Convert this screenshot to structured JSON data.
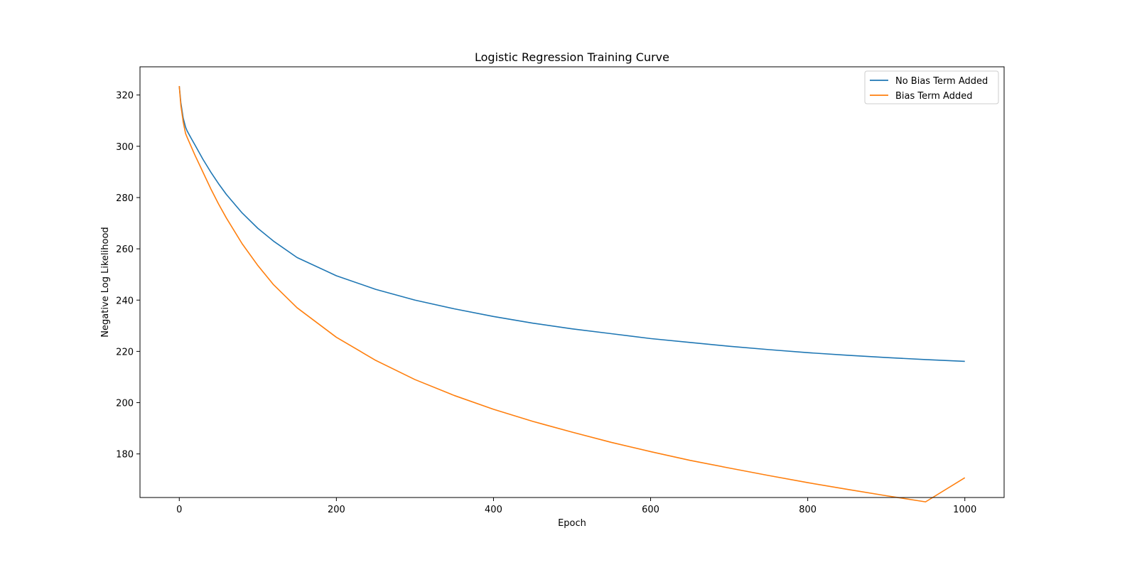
{
  "chart_data": {
    "type": "line",
    "title": "Logistic Regression Training Curve",
    "xlabel": "Epoch",
    "ylabel": "Negative Log Likelihood",
    "xlim": [
      -50,
      1050
    ],
    "ylim": [
      163,
      331
    ],
    "xticks": [
      0,
      200,
      400,
      600,
      800,
      1000
    ],
    "yticks": [
      180,
      200,
      220,
      240,
      260,
      280,
      300,
      320
    ],
    "grid": false,
    "legend_position": "top-right",
    "series": [
      {
        "name": "No Bias Term Added",
        "color": "#1f77b4",
        "x": [
          0,
          2,
          5,
          8,
          10,
          15,
          20,
          30,
          40,
          50,
          60,
          80,
          100,
          120,
          150,
          200,
          250,
          300,
          350,
          400,
          450,
          500,
          550,
          600,
          650,
          700,
          750,
          800,
          850,
          900,
          950,
          1000
        ],
        "y": [
          323.5,
          317,
          311,
          307.5,
          306,
          303.2,
          300.5,
          295,
          290,
          285.4,
          281.2,
          274,
          268,
          263,
          256.6,
          249.5,
          244.2,
          240,
          236.6,
          233.6,
          231,
          228.8,
          226.9,
          225,
          223.5,
          222,
          220.7,
          219.5,
          218.5,
          217.6,
          216.8,
          216.1
        ]
      },
      {
        "name": "Bias Term Added",
        "color": "#ff7f0e",
        "x": [
          0,
          2,
          5,
          8,
          10,
          15,
          20,
          30,
          40,
          50,
          60,
          80,
          100,
          120,
          150,
          200,
          250,
          300,
          350,
          400,
          450,
          500,
          550,
          600,
          650,
          700,
          750,
          800,
          850,
          900,
          950,
          1000
        ],
        "y": [
          323.5,
          316,
          309.5,
          305,
          303.5,
          300,
          296.5,
          290,
          283.5,
          277.5,
          272,
          262,
          253.5,
          246,
          237,
          225.5,
          216.5,
          209,
          202.8,
          197.4,
          192.7,
          188.5,
          184.5,
          180.9,
          177.5,
          174.5,
          171.6,
          168.8,
          166.2,
          163.7,
          161.3,
          170.7
        ]
      }
    ]
  }
}
